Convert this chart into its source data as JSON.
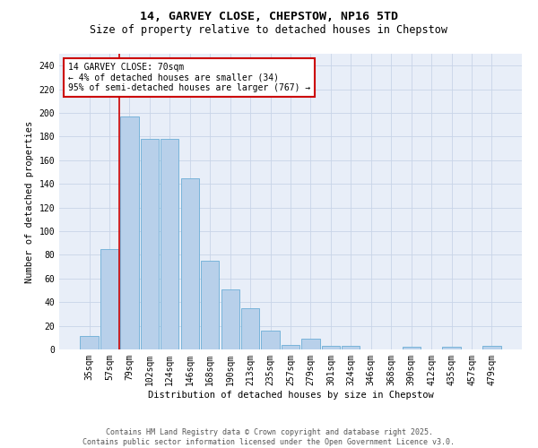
{
  "title_line1": "14, GARVEY CLOSE, CHEPSTOW, NP16 5TD",
  "title_line2": "Size of property relative to detached houses in Chepstow",
  "xlabel": "Distribution of detached houses by size in Chepstow",
  "ylabel": "Number of detached properties",
  "categories": [
    "35sqm",
    "57sqm",
    "79sqm",
    "102sqm",
    "124sqm",
    "146sqm",
    "168sqm",
    "190sqm",
    "213sqm",
    "235sqm",
    "257sqm",
    "279sqm",
    "301sqm",
    "324sqm",
    "346sqm",
    "368sqm",
    "390sqm",
    "412sqm",
    "435sqm",
    "457sqm",
    "479sqm"
  ],
  "values": [
    11,
    85,
    197,
    178,
    178,
    145,
    75,
    51,
    35,
    16,
    4,
    9,
    3,
    3,
    0,
    0,
    2,
    0,
    2,
    0,
    3
  ],
  "bar_color": "#b8d0ea",
  "bar_edge_color": "#6baed6",
  "annotation_box_text": "14 GARVEY CLOSE: 70sqm\n← 4% of detached houses are smaller (34)\n95% of semi-detached houses are larger (767) →",
  "vline_color": "#cc0000",
  "ylim": [
    0,
    250
  ],
  "yticks": [
    0,
    20,
    40,
    60,
    80,
    100,
    120,
    140,
    160,
    180,
    200,
    220,
    240
  ],
  "grid_color": "#c8d4e8",
  "bg_color": "#e8eef8",
  "footer_text": "Contains HM Land Registry data © Crown copyright and database right 2025.\nContains public sector information licensed under the Open Government Licence v3.0.",
  "title_fontsize": 9.5,
  "subtitle_fontsize": 8.5,
  "axis_label_fontsize": 7.5,
  "tick_fontsize": 7,
  "annotation_fontsize": 7,
  "footer_fontsize": 6
}
